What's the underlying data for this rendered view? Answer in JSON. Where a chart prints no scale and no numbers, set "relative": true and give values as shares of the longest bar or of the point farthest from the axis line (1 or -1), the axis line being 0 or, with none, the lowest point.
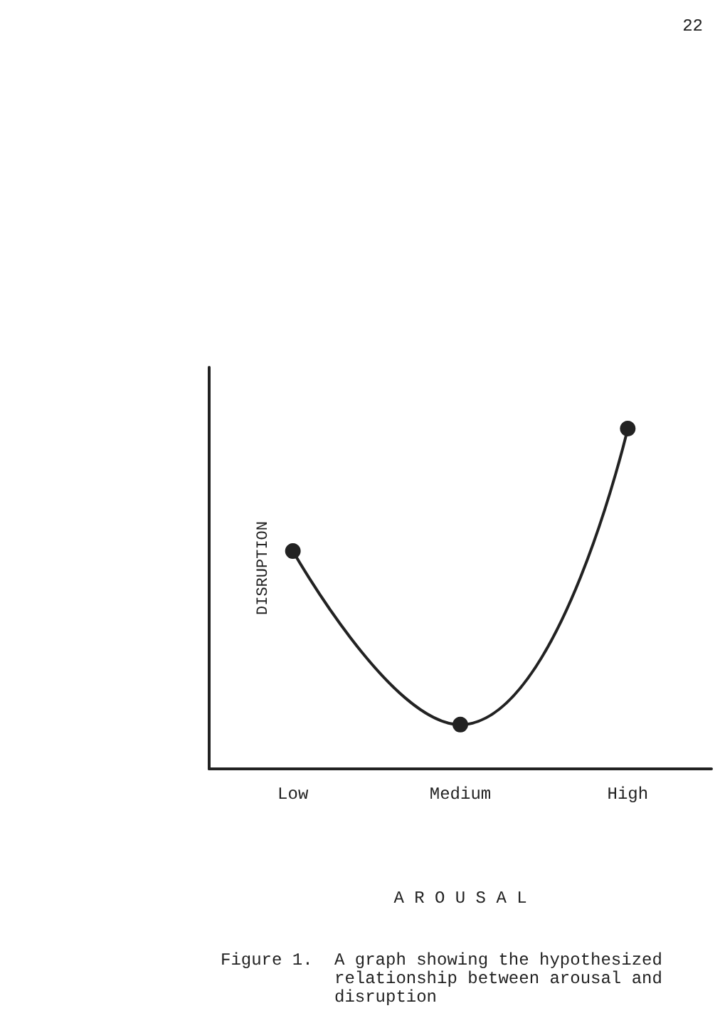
{
  "chart_data": {
    "type": "line",
    "xlabel": "A R O U S A L",
    "ylabel": "DISRUPTION",
    "categories": [
      "Low",
      "Medium",
      "High"
    ],
    "series": [
      {
        "color": "#222222",
        "values": [
          0.64,
          0.13,
          1
        ]
      }
    ],
    "relative": true,
    "marker": "circle",
    "line_style": "solid",
    "grid": false,
    "annotations": [
      "22",
      "Figure 1.",
      "A graph showing the hypothesized relationship between arousal and disruption"
    ]
  }
}
